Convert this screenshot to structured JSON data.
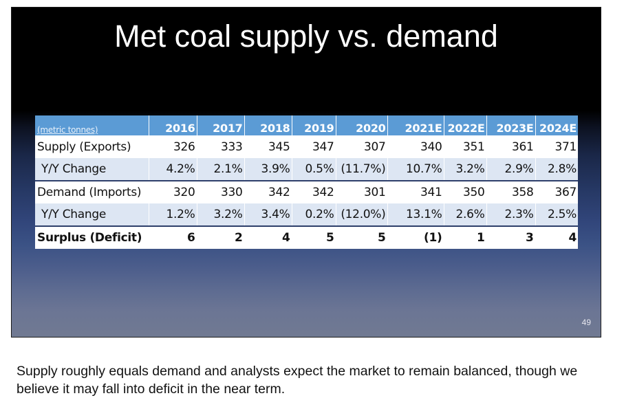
{
  "slide": {
    "title": "Met coal supply vs. demand",
    "page_number": "49"
  },
  "table": {
    "unit_label": "(metric tonnes)",
    "years": [
      "2016",
      "2017",
      "2018",
      "2019",
      "2020",
      "2021E",
      "2022E",
      "2023E",
      "2024E"
    ],
    "rows": [
      {
        "label": "Supply (Exports)",
        "values": [
          "326",
          "333",
          "345",
          "347",
          "307",
          "340",
          "351",
          "361",
          "371"
        ]
      },
      {
        "label": "Y/Y Change",
        "values": [
          "4.2%",
          "2.1%",
          "3.9%",
          "0.5%",
          "(11.7%)",
          "10.7%",
          "3.2%",
          "2.9%",
          "2.8%"
        ]
      },
      {
        "label": "Demand (Imports)",
        "values": [
          "320",
          "330",
          "342",
          "342",
          "301",
          "341",
          "350",
          "358",
          "367"
        ]
      },
      {
        "label": "Y/Y Change",
        "values": [
          "1.2%",
          "3.2%",
          "3.4%",
          "0.2%",
          "(12.0%)",
          "13.1%",
          "2.6%",
          "2.3%",
          "2.5%"
        ]
      },
      {
        "label": "Surplus (Deficit)",
        "values": [
          "6",
          "2",
          "4",
          "5",
          "5",
          "(1)",
          "1",
          "3",
          "4"
        ]
      }
    ]
  },
  "note": "Supply roughly equals demand and analysts expect the market to remain balanced, though we believe it may fall into deficit in the near term."
}
